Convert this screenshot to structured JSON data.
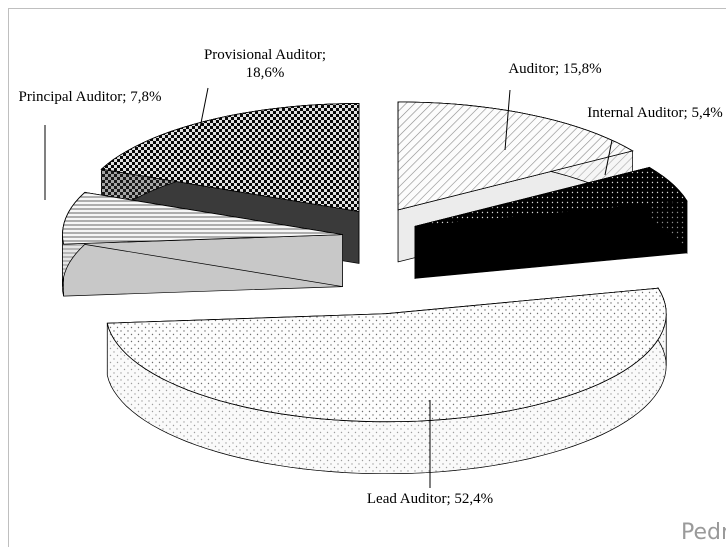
{
  "chart_data": {
    "type": "pie3d",
    "values": [
      15.8,
      5.4,
      52.4,
      7.8,
      18.6
    ],
    "value_labels": [
      "Auditor; 15,8%",
      "Internal Auditor; 5,4%",
      "Lead Auditor; 52,4%",
      "Principal Auditor; 7,8%",
      "Provisional Auditor; 18,6%"
    ],
    "colors": [
      "#ececec",
      "#000000",
      "#f6f6f6",
      "#c8c8c8",
      "#3a3a3a"
    ]
  },
  "watermark": "Pedr"
}
